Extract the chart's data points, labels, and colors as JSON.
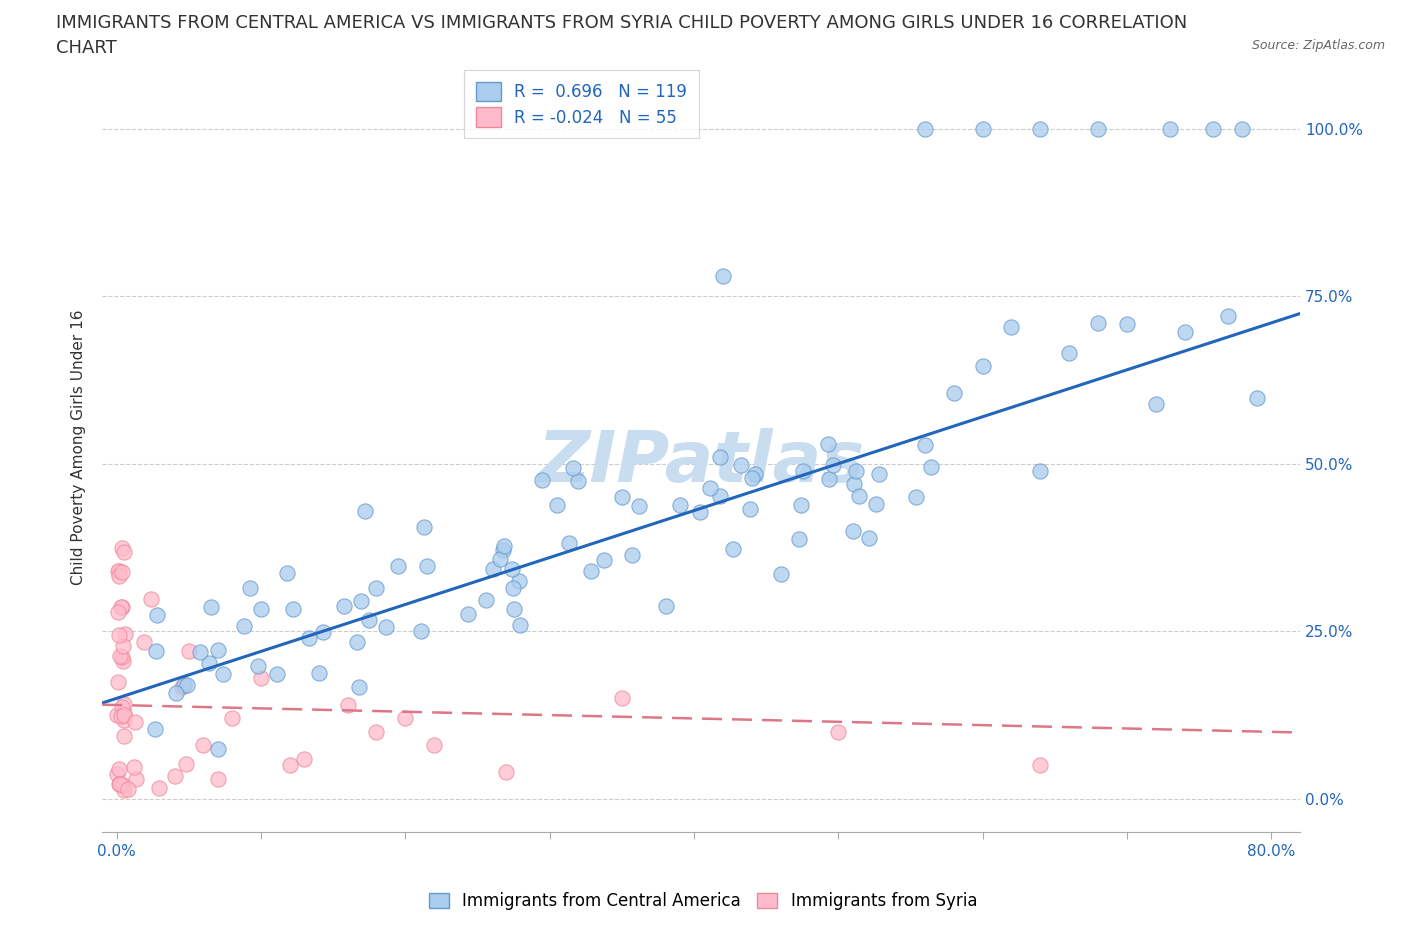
{
  "title_line1": "IMMIGRANTS FROM CENTRAL AMERICA VS IMMIGRANTS FROM SYRIA CHILD POVERTY AMONG GIRLS UNDER 16 CORRELATION",
  "title_line2": "CHART",
  "source": "Source: ZipAtlas.com",
  "ylabel": "Child Poverty Among Girls Under 16",
  "xlim": [
    -0.01,
    0.82
  ],
  "ylim": [
    -0.05,
    1.1
  ],
  "yticks": [
    0.0,
    0.25,
    0.5,
    0.75,
    1.0
  ],
  "ytick_labels": [
    "0.0%",
    "25.0%",
    "50.0%",
    "75.0%",
    "100.0%"
  ],
  "xticks": [
    0.0,
    0.1,
    0.2,
    0.3,
    0.4,
    0.5,
    0.6,
    0.7,
    0.8
  ],
  "xtick_labels_show": [
    "0.0%",
    "",
    "",
    "",
    "",
    "",
    "",
    "",
    "80.0%"
  ],
  "legend_entries": [
    {
      "label": "Immigrants from Central America",
      "color": "#a8c8f0",
      "R": 0.696,
      "N": 119
    },
    {
      "label": "Immigrants from Syria",
      "color": "#f8a0b0",
      "R": -0.024,
      "N": 55
    }
  ],
  "blue_line_color": "#2266bb",
  "pink_line_color": "#dd7788",
  "watermark": "ZIPatlas",
  "watermark_color": "#c8ddf0",
  "scatter_blue_color": "#aaccee",
  "scatter_pink_color": "#ffbbcc",
  "scatter_blue_edge": "#6699cc",
  "scatter_pink_edge": "#ee8899",
  "title_fontsize": 13,
  "axis_label_fontsize": 11,
  "tick_fontsize": 11,
  "legend_fontsize": 12,
  "blue_line_intercept": 0.15,
  "blue_line_slope": 0.7,
  "pink_line_intercept": 0.14,
  "pink_line_slope": -0.05
}
